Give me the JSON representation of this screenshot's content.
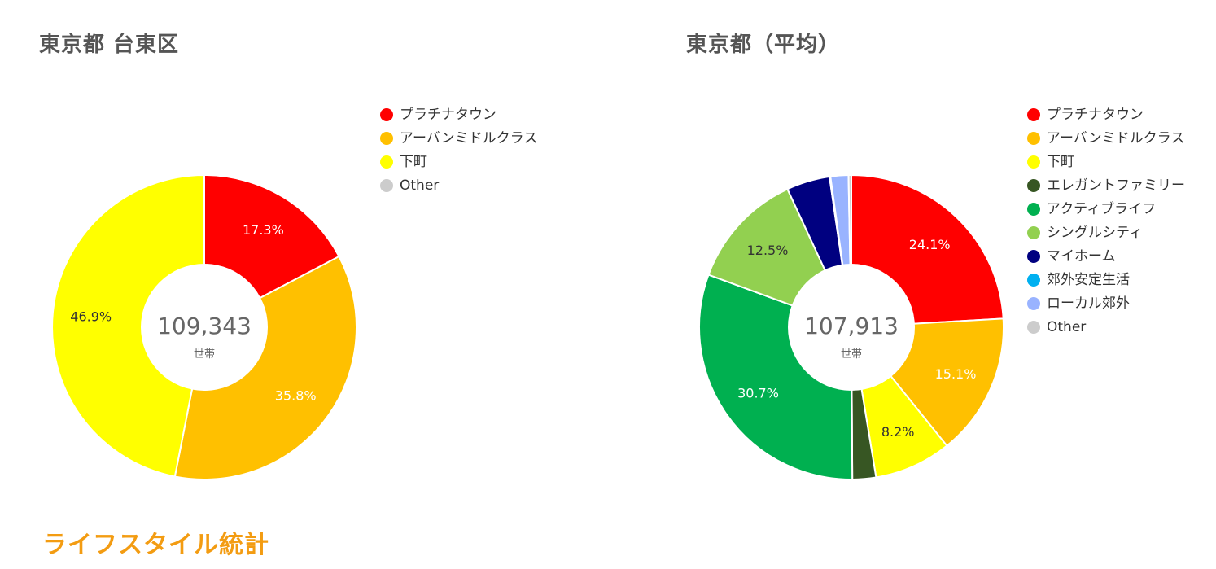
{
  "section_heading": "ライフスタイル統計",
  "chart_data": [
    {
      "type": "pie",
      "title": "東京都 台東区",
      "center_value": "109,343",
      "center_unit": "世帯",
      "categories": [
        "プラチナタウン",
        "アーバンミドルクラス",
        "下町",
        "Other"
      ],
      "colors": [
        "#ff0000",
        "#ffc000",
        "#ffff00",
        "#cccccc"
      ],
      "values": [
        17.3,
        35.8,
        46.9,
        0
      ],
      "slice_labels": [
        "17.3%",
        "35.8%",
        "46.9%",
        ""
      ],
      "legend_position": "right"
    },
    {
      "type": "pie",
      "title": "東京都（平均）",
      "center_value": "107,913",
      "center_unit": "世帯",
      "categories": [
        "プラチナタウン",
        "アーバンミドルクラス",
        "下町",
        "エレガントファミリー",
        "アクティブライフ",
        "シングルシティ",
        "マイホーム",
        "郊外安定生活",
        "ローカル郊外",
        "Other"
      ],
      "colors": [
        "#ff0000",
        "#ffc000",
        "#ffff00",
        "#375623",
        "#00b050",
        "#92d050",
        "#000080",
        "#00b0f0",
        "#99b3ff",
        "#cccccc"
      ],
      "values": [
        24.1,
        15.1,
        8.2,
        2.5,
        30.7,
        12.5,
        4.6,
        0.1,
        1.9,
        0.3
      ],
      "slice_labels": [
        "24.1%",
        "15.1%",
        "8.2%",
        "",
        "30.7%",
        "12.5%",
        "",
        "",
        "",
        ""
      ],
      "legend_position": "right"
    }
  ]
}
